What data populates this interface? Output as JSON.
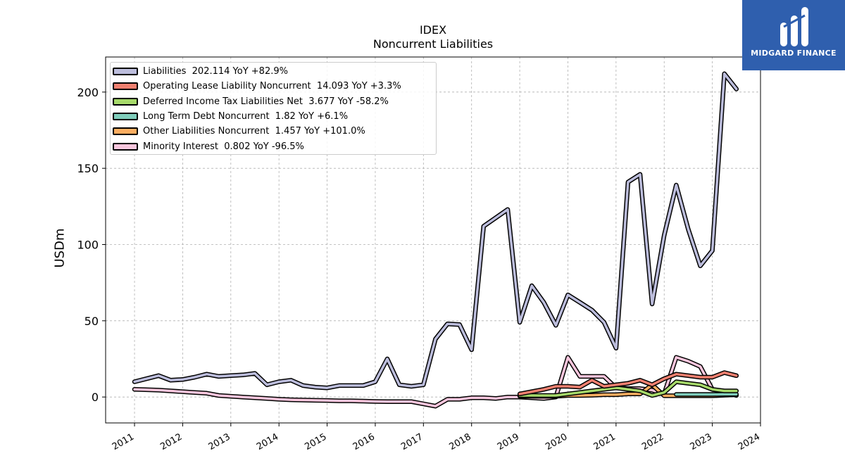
{
  "brand": {
    "name": "MIDGARD FINANCE"
  },
  "chart_data": {
    "type": "line",
    "title": "IDEX",
    "subtitle": "Noncurrent  Liabilities",
    "ylabel": "USDm",
    "xlabel": "",
    "x_ticks": [
      "2011",
      "2012",
      "2013",
      "2014",
      "2015",
      "2016",
      "2017",
      "2018",
      "2019",
      "2020",
      "2021",
      "2022",
      "2023",
      "2024"
    ],
    "y_ticks": [
      0,
      50,
      100,
      150,
      200
    ],
    "xlim": [
      2010.4,
      2024.0
    ],
    "ylim": [
      -17,
      223
    ],
    "grid": true,
    "legend_position": "top-left",
    "series": [
      {
        "name": "Liabilities",
        "legend": "Liabilities  202.114 YoY +82.9%",
        "color": "#bcbddc",
        "x": [
          2011.0,
          2011.5,
          2011.75,
          2012.0,
          2012.25,
          2012.5,
          2012.75,
          2013.0,
          2013.25,
          2013.5,
          2013.75,
          2014.0,
          2014.25,
          2014.5,
          2014.75,
          2015.0,
          2015.25,
          2015.5,
          2015.75,
          2016.0,
          2016.25,
          2016.5,
          2016.75,
          2017.0,
          2017.25,
          2017.5,
          2017.75,
          2018.0,
          2018.25,
          2018.75,
          2019.0,
          2019.25,
          2019.5,
          2019.75,
          2020.0,
          2020.25,
          2020.5,
          2020.75,
          2021.0,
          2021.25,
          2021.5,
          2021.75,
          2022.0,
          2022.25,
          2022.5,
          2022.75,
          2023.0,
          2023.25,
          2023.5
        ],
        "y": [
          10,
          14,
          11,
          11.5,
          13,
          15,
          13.5,
          14,
          14.5,
          15.5,
          8,
          10,
          11,
          7.5,
          6.5,
          6,
          7.5,
          7.5,
          7.5,
          10,
          25,
          8,
          7,
          8,
          38,
          48,
          47.5,
          31,
          112,
          123,
          49,
          73,
          62,
          47,
          67,
          62,
          57,
          49,
          32,
          141,
          146,
          61,
          106,
          139,
          110,
          86,
          96,
          212,
          202
        ]
      },
      {
        "name": "Operating Lease Liability Noncurrent",
        "legend": "Operating Lease Liability Noncurrent  14.093 YoY +3.3%",
        "color": "#f08070",
        "x": [
          2019.0,
          2019.25,
          2019.5,
          2019.75,
          2020.0,
          2020.25,
          2020.5,
          2020.75,
          2021.0,
          2021.25,
          2021.5,
          2021.75,
          2022.0,
          2022.25,
          2022.5,
          2022.75,
          2023.0,
          2023.25,
          2023.5
        ],
        "y": [
          2,
          3.5,
          5,
          7,
          7,
          6.5,
          11,
          7,
          8,
          9,
          11,
          8,
          12,
          15,
          14,
          13,
          13,
          16,
          14
        ]
      },
      {
        "name": "Deferred Income Tax Liabilities Net",
        "legend": "Deferred Income Tax Liabilities Net  3.677 YoY -58.2%",
        "color": "#a6d96a",
        "x": [
          2019.0,
          2019.25,
          2019.5,
          2019.75,
          2020.0,
          2020.25,
          2020.5,
          2020.75,
          2021.0,
          2021.25,
          2021.5,
          2021.75,
          2022.0,
          2022.25,
          2022.5,
          2022.75,
          2023.0,
          2023.25,
          2023.5
        ],
        "y": [
          1,
          1,
          1,
          1,
          2,
          3,
          4,
          5,
          6,
          5,
          4,
          1,
          3,
          10,
          9,
          8,
          5,
          4,
          4
        ]
      },
      {
        "name": "Long Term Debt Noncurrent",
        "legend": "Long Term Debt Noncurrent  1.82 YoY +6.1%",
        "color": "#7fcdbb",
        "x": [
          2022.25,
          2022.5,
          2022.75,
          2023.0,
          2023.25,
          2023.5
        ],
        "y": [
          1.7,
          1.7,
          1.7,
          1.7,
          1.8,
          1.8
        ]
      },
      {
        "name": "Other Liabilities Noncurrent",
        "legend": "Other Liabilities Noncurrent  1.457 YoY +101.0%",
        "color": "#fdae61",
        "x": [
          2019.0,
          2019.25,
          2019.5,
          2019.75,
          2020.0,
          2020.25,
          2020.5,
          2020.75,
          2021.0,
          2021.25,
          2021.5,
          2021.75,
          2022.0,
          2022.25,
          2022.5,
          2022.75,
          2023.0,
          2023.25,
          2023.5
        ],
        "y": [
          0.5,
          0.5,
          0.5,
          0.5,
          1,
          1,
          1.2,
          1.5,
          1.5,
          2,
          2,
          8,
          0.8,
          0.8,
          0.8,
          0.8,
          0.8,
          1.2,
          1.5
        ]
      },
      {
        "name": "Minority Interest",
        "legend": "Minority Interest  0.802 YoY -96.5%",
        "color": "#f9c6dd",
        "x": [
          2011.0,
          2011.5,
          2011.75,
          2012.0,
          2012.25,
          2012.5,
          2012.75,
          2013.0,
          2013.25,
          2013.5,
          2013.75,
          2014.0,
          2014.25,
          2014.5,
          2014.75,
          2015.0,
          2015.25,
          2015.5,
          2015.75,
          2016.0,
          2016.25,
          2016.5,
          2016.75,
          2017.0,
          2017.25,
          2017.5,
          2017.75,
          2018.0,
          2018.25,
          2018.5,
          2018.75,
          2019.0,
          2019.25,
          2019.5,
          2019.75,
          2020.0,
          2020.25,
          2020.5,
          2020.75,
          2021.0,
          2021.25,
          2021.5,
          2021.75,
          2022.0,
          2022.25,
          2022.5,
          2022.75,
          2023.0,
          2023.25,
          2023.5
        ],
        "y": [
          5,
          4.5,
          4,
          3.5,
          3,
          2.5,
          1,
          0.5,
          0,
          -0.5,
          -1,
          -1.5,
          -1.8,
          -2,
          -2.2,
          -2.3,
          -2.5,
          -2.5,
          -2.7,
          -2.9,
          -3,
          -3,
          -3,
          -4.5,
          -6,
          -1.5,
          -1.5,
          -0.5,
          -0.5,
          -1,
          0,
          0,
          -0.5,
          -1,
          0,
          26,
          13.5,
          13.5,
          13.5,
          6,
          5.5,
          5.5,
          4.5,
          2,
          26,
          23.5,
          20,
          5,
          3.5,
          1
        ]
      }
    ]
  }
}
